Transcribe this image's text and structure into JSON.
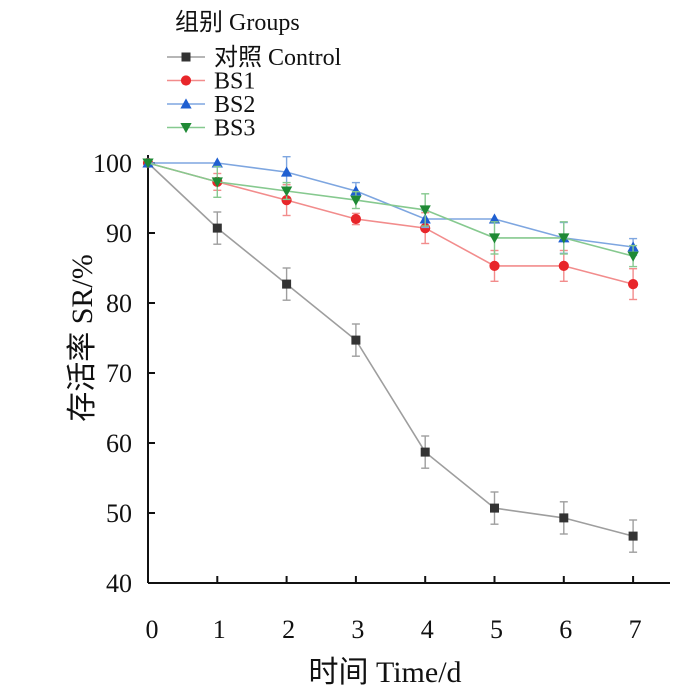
{
  "chart_data": {
    "type": "line",
    "xlabel": "时间 Time/d",
    "ylabel": "存活率 SR/%",
    "x": [
      0,
      1,
      2,
      3,
      4,
      5,
      6,
      7
    ],
    "xlim": [
      0,
      7.3
    ],
    "ylim": [
      40,
      101
    ],
    "yticks": [
      40,
      50,
      60,
      70,
      80,
      90,
      100
    ],
    "legend": {
      "title": "组别 Groups",
      "position": "top-left"
    },
    "series": [
      {
        "name": "对照 Control",
        "color": "#9e9e9e",
        "marker": "square",
        "marker_color": "#333333",
        "values": [
          100,
          90.7,
          82.7,
          74.7,
          58.7,
          50.7,
          49.3,
          46.7
        ],
        "error": [
          0,
          2.3,
          2.3,
          2.3,
          2.3,
          2.3,
          2.3,
          2.3
        ]
      },
      {
        "name": "BS1",
        "color": "#f28c8c",
        "marker": "circle",
        "marker_color": "#e8262a",
        "values": [
          100,
          97.3,
          94.7,
          92.0,
          90.7,
          85.3,
          85.3,
          82.7
        ],
        "error": [
          0,
          1.2,
          2.2,
          0.8,
          2.2,
          2.2,
          2.2,
          2.2
        ]
      },
      {
        "name": "BS2",
        "color": "#7ea6e0",
        "marker": "triangle-up",
        "marker_color": "#1f5fd1",
        "values": [
          100,
          100,
          98.7,
          96.0,
          92.0,
          92.0,
          89.3,
          88.0
        ],
        "error": [
          0,
          0,
          2.2,
          1.2,
          1.2,
          0,
          2.2,
          1.2
        ]
      },
      {
        "name": "BS3",
        "color": "#86c98f",
        "marker": "triangle-down",
        "marker_color": "#1f8a35",
        "values": [
          100,
          97.3,
          96.0,
          94.7,
          93.3,
          89.3,
          89.3,
          86.7
        ],
        "error": [
          0,
          2.2,
          1.2,
          1.2,
          2.3,
          2.3,
          2.3,
          1.5
        ]
      }
    ]
  }
}
